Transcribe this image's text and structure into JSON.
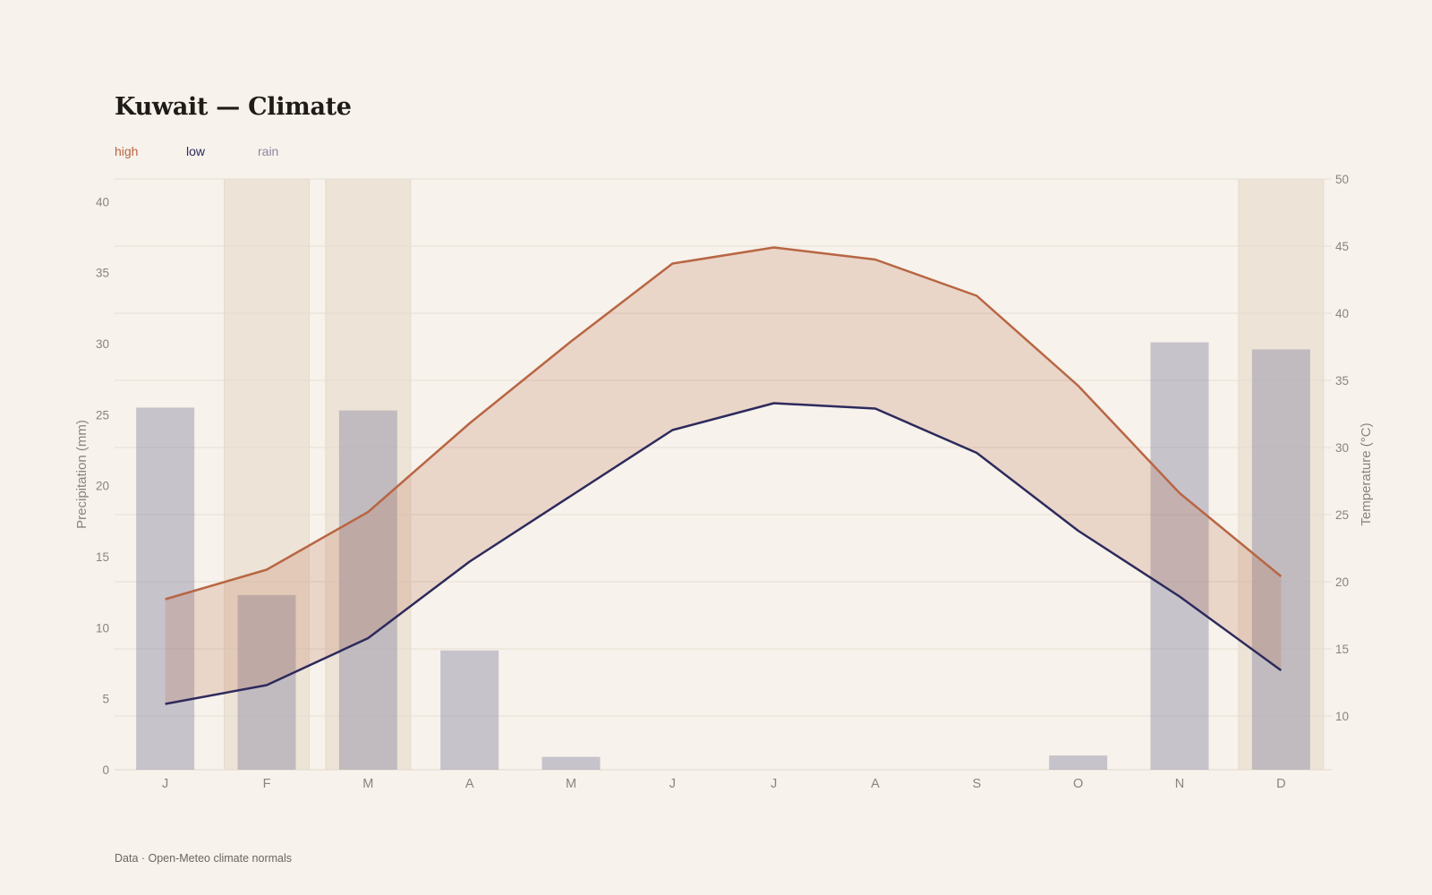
{
  "header": {
    "title": "Kuwait — Climate"
  },
  "legend": [
    {
      "key": "high",
      "label": "high",
      "color": "#b86643"
    },
    {
      "key": "low",
      "label": "low",
      "color": "#2d2a5c"
    },
    {
      "key": "rain",
      "label": "rain",
      "color": "#8c89a3"
    }
  ],
  "footer": {
    "source": "Data · Open-Meteo climate normals"
  },
  "chart_data": {
    "type": "bar+line",
    "categories": [
      "J",
      "F",
      "M",
      "A",
      "M",
      "J",
      "J",
      "A",
      "S",
      "O",
      "N",
      "D"
    ],
    "highlighted_months": [
      1,
      2,
      11
    ],
    "series": [
      {
        "name": "rain",
        "type": "bar",
        "axis": "left",
        "color": "#8c89a3",
        "values": [
          25.5,
          12.3,
          25.3,
          8.4,
          0.9,
          0,
          0,
          0,
          0,
          1.0,
          30.1,
          29.6
        ]
      },
      {
        "name": "high",
        "type": "line",
        "axis": "right",
        "color": "#b86643",
        "values": [
          18.7,
          20.9,
          25.2,
          31.8,
          37.9,
          43.7,
          44.9,
          44.0,
          41.3,
          34.6,
          26.6,
          20.4
        ]
      },
      {
        "name": "low",
        "type": "line",
        "axis": "right",
        "color": "#2d2a5c",
        "values": [
          10.9,
          12.3,
          15.8,
          21.5,
          26.4,
          31.3,
          33.3,
          32.9,
          29.6,
          23.8,
          18.9,
          13.4
        ]
      }
    ],
    "left_axis": {
      "label": "Precipitation (mm)",
      "ylim": [
        0,
        41.6
      ],
      "ticks": [
        0,
        5,
        10,
        15,
        20,
        25,
        30,
        35,
        40
      ]
    },
    "right_axis": {
      "label": "Temperature (°C)",
      "ylim": [
        6,
        50
      ],
      "ticks": [
        10,
        15,
        20,
        25,
        30,
        35,
        40,
        45,
        50
      ]
    },
    "grid": true
  }
}
